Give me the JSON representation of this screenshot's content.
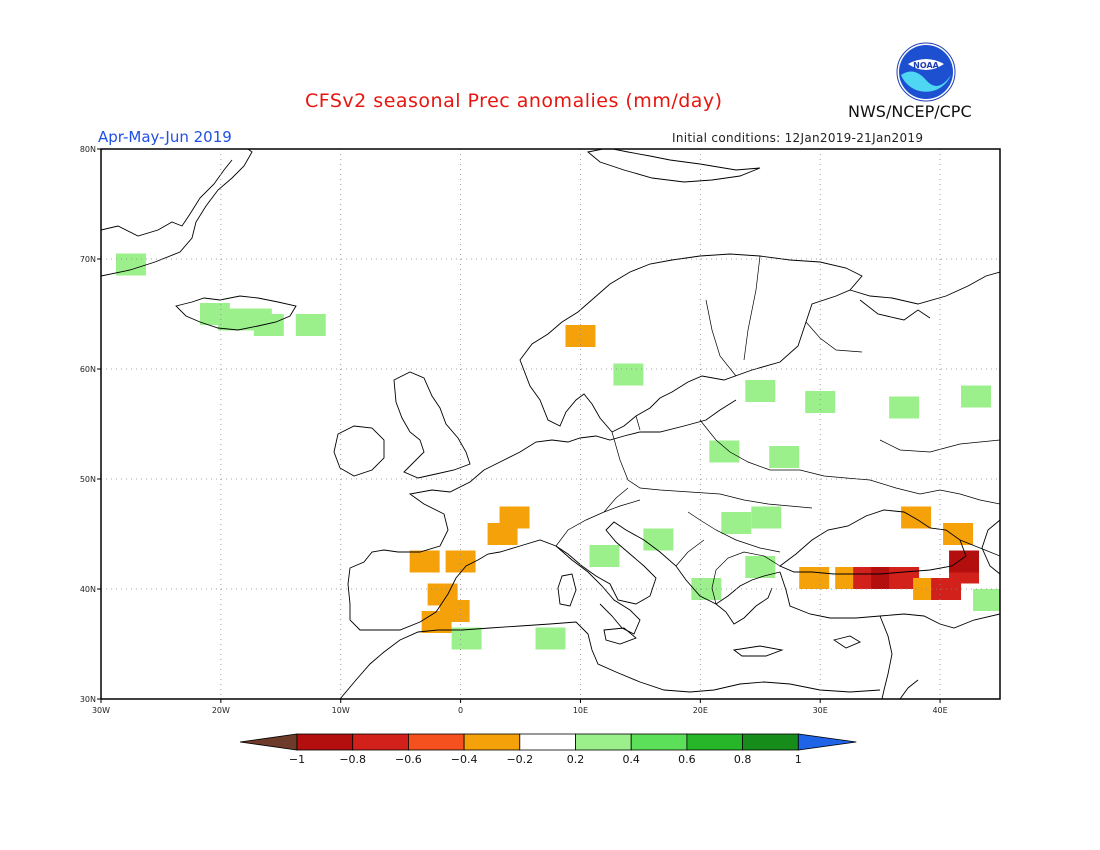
{
  "header": {
    "title": "CFSv2 seasonal Prec anomalies (mm/day)",
    "period": "Apr-May-Jun 2019",
    "initial_conditions": "Initial conditions: 12Jan2019-21Jan2019",
    "org": "NWS/NCEP/CPC",
    "logo_text": "NOAA"
  },
  "map": {
    "lon_range": [
      -30,
      45
    ],
    "lat_range": [
      30,
      80
    ],
    "lon_ticks": [
      "30W",
      "20W",
      "10W",
      "0",
      "10E",
      "20E",
      "30E",
      "40E"
    ],
    "lat_ticks": [
      "30N",
      "40N",
      "50N",
      "60N",
      "70N",
      "80N"
    ],
    "grid": "dotted",
    "anomaly_cells": [
      {
        "lon": -27.5,
        "lat": 69.5,
        "v": 0.3
      },
      {
        "lon": -20.5,
        "lat": 65.0,
        "v": 0.3
      },
      {
        "lon": -19.0,
        "lat": 64.5,
        "v": 0.3
      },
      {
        "lon": -17.0,
        "lat": 64.5,
        "v": 0.3
      },
      {
        "lon": -16.0,
        "lat": 64.0,
        "v": 0.4
      },
      {
        "lon": -12.5,
        "lat": 64.0,
        "v": 0.3
      },
      {
        "lon": 10.0,
        "lat": 63.0,
        "v": -0.3
      },
      {
        "lon": 14.0,
        "lat": 59.5,
        "v": 0.3
      },
      {
        "lon": 25.0,
        "lat": 58.0,
        "v": 0.3
      },
      {
        "lon": 30.0,
        "lat": 57.0,
        "v": 0.3
      },
      {
        "lon": 37.0,
        "lat": 56.5,
        "v": 0.3
      },
      {
        "lon": 43.0,
        "lat": 57.5,
        "v": 0.3
      },
      {
        "lon": 22.0,
        "lat": 52.5,
        "v": 0.3
      },
      {
        "lon": 27.0,
        "lat": 52.0,
        "v": 0.3
      },
      {
        "lon": 23.0,
        "lat": 46.0,
        "v": 0.3
      },
      {
        "lon": 25.5,
        "lat": 46.5,
        "v": 0.3
      },
      {
        "lon": 16.5,
        "lat": 44.5,
        "v": 0.3
      },
      {
        "lon": 12.0,
        "lat": 43.0,
        "v": 0.3
      },
      {
        "lon": 25.0,
        "lat": 42.0,
        "v": 0.4
      },
      {
        "lon": 20.5,
        "lat": 40.0,
        "v": 0.3
      },
      {
        "lon": 0.5,
        "lat": 35.5,
        "v": 0.3
      },
      {
        "lon": 7.5,
        "lat": 35.5,
        "v": 0.3
      },
      {
        "lon": 44.0,
        "lat": 39.0,
        "v": 0.3
      },
      {
        "lon": 4.5,
        "lat": 46.5,
        "v": -0.3
      },
      {
        "lon": 3.5,
        "lat": 45.0,
        "v": -0.3
      },
      {
        "lon": -3.0,
        "lat": 42.5,
        "v": -0.3
      },
      {
        "lon": 0.0,
        "lat": 42.5,
        "v": -0.3
      },
      {
        "lon": -1.5,
        "lat": 39.5,
        "v": -0.3
      },
      {
        "lon": -0.5,
        "lat": 38.0,
        "v": -0.3
      },
      {
        "lon": -2.0,
        "lat": 37.0,
        "v": -0.3
      },
      {
        "lon": 38.0,
        "lat": 46.5,
        "v": -0.3
      },
      {
        "lon": 41.5,
        "lat": 45.0,
        "v": -0.3
      },
      {
        "lon": 29.5,
        "lat": 41.0,
        "v": -0.3
      },
      {
        "lon": 32.5,
        "lat": 41.0,
        "v": -0.3
      },
      {
        "lon": 34.0,
        "lat": 41.0,
        "v": -0.6
      },
      {
        "lon": 35.5,
        "lat": 41.0,
        "v": -0.8
      },
      {
        "lon": 37.0,
        "lat": 41.0,
        "v": -0.6
      },
      {
        "lon": 39.0,
        "lat": 40.0,
        "v": -0.3
      },
      {
        "lon": 40.5,
        "lat": 40.0,
        "v": -0.6
      },
      {
        "lon": 42.0,
        "lat": 41.5,
        "v": -0.6
      },
      {
        "lon": 42.0,
        "lat": 42.5,
        "v": -0.8
      }
    ]
  },
  "colorbar": {
    "levels": [
      "-1",
      "-0.8",
      "-0.6",
      "-0.4",
      "-0.2",
      "0.2",
      "0.4",
      "0.6",
      "0.8",
      "1"
    ],
    "colors": [
      "#6e3b2a",
      "#b30f0f",
      "#d2201b",
      "#f5511e",
      "#f5a10a",
      "#ffffff",
      "#9bf08c",
      "#5ce05a",
      "#27b52a",
      "#168d1a",
      "#1f63e6"
    ]
  }
}
